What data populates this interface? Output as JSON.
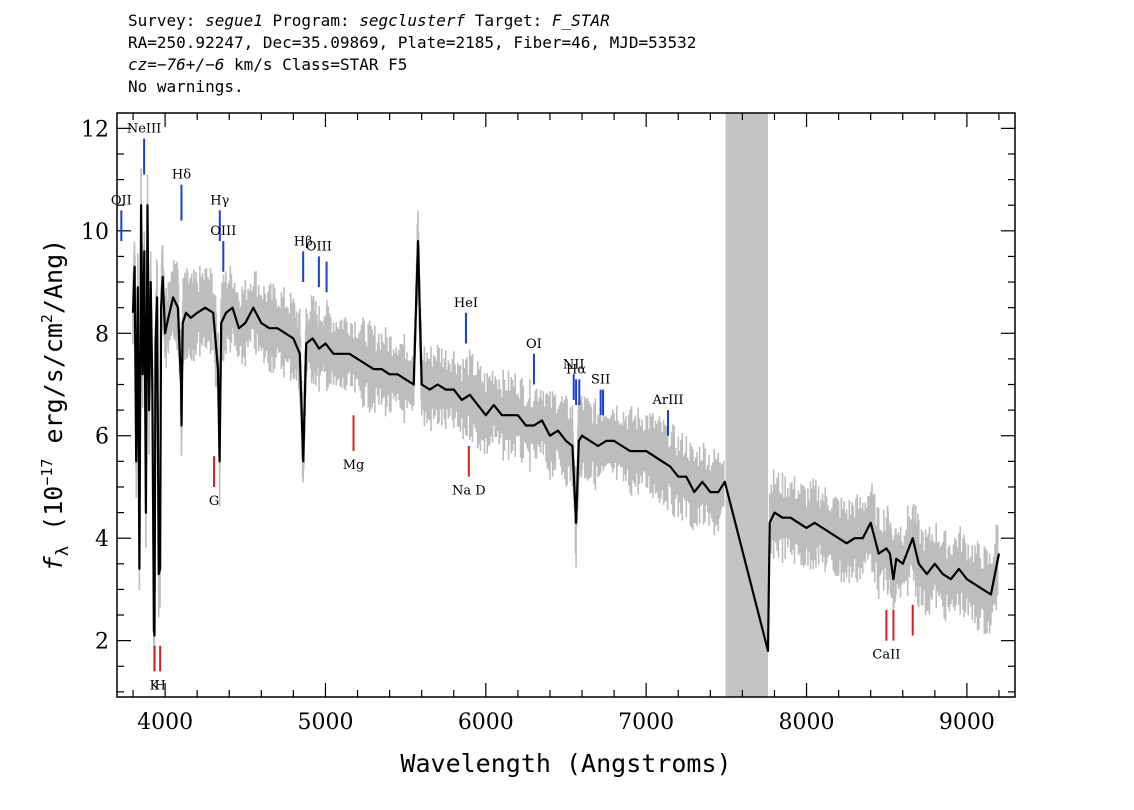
{
  "header": {
    "survey_label": "Survey:",
    "survey": "segue1",
    "program_label": "Program:",
    "program": "segclusterf",
    "target_label": "Target:",
    "target": "F_STAR",
    "line2": "RA=250.92247, Dec=35.09869, Plate=2185, Fiber=46, MJD=53532",
    "cz_label": "cz=",
    "cz_value": "−76+/−6",
    "cz_rest": " km/s Class=STAR F5",
    "line4": "No warnings."
  },
  "chart_data": {
    "type": "line",
    "xlabel": "Wavelength (Angstroms)",
    "ylabel_main": "f",
    "ylabel_sub": "λ",
    "ylabel_pre": " (10",
    "ylabel_exp": "−17",
    "ylabel_mid": " erg/s/cm",
    "ylabel_exp2": "2",
    "ylabel_post": "/Ang)",
    "xlim": [
      3700,
      9300
    ],
    "ylim": [
      0.9,
      12.3
    ],
    "xticks": [
      "4000",
      "5000",
      "6000",
      "7000",
      "8000",
      "9000"
    ],
    "yticks": [
      "2",
      "4",
      "6",
      "8",
      "10",
      "12"
    ],
    "masked_region": [
      7495,
      7760
    ],
    "emission_lines": [
      {
        "label": "OII",
        "x": 3727,
        "y0": 9.8,
        "y1": 10.4
      },
      {
        "label": "NeIII",
        "x": 3869,
        "y0": 11.1,
        "y1": 11.8
      },
      {
        "label": "Hδ",
        "x": 4102,
        "y0": 10.2,
        "y1": 10.9
      },
      {
        "label": "Hγ",
        "x": 4341,
        "y0": 9.8,
        "y1": 10.4
      },
      {
        "label": "OIII",
        "x": 4363,
        "y0": 9.2,
        "y1": 9.8
      },
      {
        "label": "Hβ",
        "x": 4861,
        "y0": 9.0,
        "y1": 9.6
      },
      {
        "label": "OIII",
        "x": 4959,
        "y0": 8.9,
        "y1": 9.5
      },
      {
        "label": "",
        "x": 5007,
        "y0": 8.8,
        "y1": 9.4
      },
      {
        "label": "HeI",
        "x": 5876,
        "y0": 7.8,
        "y1": 8.4
      },
      {
        "label": "OI",
        "x": 6300,
        "y0": 7.0,
        "y1": 7.6
      },
      {
        "label": "NII",
        "x": 6548,
        "y0": 6.7,
        "y1": 7.2
      },
      {
        "label": "Hα",
        "x": 6563,
        "y0": 6.6,
        "y1": 7.1
      },
      {
        "label": "",
        "x": 6583,
        "y0": 6.6,
        "y1": 7.1
      },
      {
        "label": "SII",
        "x": 6716,
        "y0": 6.4,
        "y1": 6.9
      },
      {
        "label": "",
        "x": 6731,
        "y0": 6.4,
        "y1": 6.9
      },
      {
        "label": "ArIII",
        "x": 7136,
        "y0": 6.0,
        "y1": 6.5
      }
    ],
    "absorption_lines": [
      {
        "label": "K",
        "x": 3934,
        "y0": 1.4,
        "y1": 1.9
      },
      {
        "label": "H",
        "x": 3969,
        "y0": 1.4,
        "y1": 1.9
      },
      {
        "label": "G",
        "x": 4305,
        "y0": 5.0,
        "y1": 5.6
      },
      {
        "label": "Mg",
        "x": 5175,
        "y0": 5.7,
        "y1": 6.4
      },
      {
        "label": "Na D",
        "x": 5894,
        "y0": 5.2,
        "y1": 5.8
      },
      {
        "label": "CaII",
        "x": 8498,
        "y0": 2.0,
        "y1": 2.6
      },
      {
        "label": "",
        "x": 8542,
        "y0": 2.0,
        "y1": 2.6
      },
      {
        "label": "",
        "x": 8662,
        "y0": 2.1,
        "y1": 2.7
      }
    ],
    "spectrum": {
      "x": [
        3800,
        3810,
        3820,
        3830,
        3840,
        3850,
        3860,
        3870,
        3880,
        3890,
        3900,
        3910,
        3920,
        3930,
        3934,
        3940,
        3950,
        3960,
        3969,
        3975,
        3985,
        4000,
        4020,
        4050,
        4080,
        4100,
        4102,
        4110,
        4130,
        4160,
        4200,
        4250,
        4300,
        4330,
        4340,
        4350,
        4380,
        4420,
        4460,
        4500,
        4550,
        4600,
        4650,
        4700,
        4750,
        4800,
        4840,
        4861,
        4880,
        4920,
        4960,
        5000,
        5050,
        5100,
        5150,
        5200,
        5250,
        5300,
        5350,
        5400,
        5450,
        5500,
        5550,
        5577,
        5600,
        5650,
        5700,
        5750,
        5800,
        5850,
        5900,
        5950,
        6000,
        6050,
        6100,
        6150,
        6200,
        6250,
        6300,
        6350,
        6400,
        6450,
        6500,
        6540,
        6563,
        6580,
        6600,
        6650,
        6700,
        6750,
        6800,
        6850,
        6900,
        6950,
        7000,
        7050,
        7100,
        7150,
        7200,
        7250,
        7300,
        7350,
        7400,
        7450,
        7490,
        7760,
        7770,
        7800,
        7850,
        7900,
        7950,
        8000,
        8050,
        8100,
        8150,
        8200,
        8250,
        8300,
        8350,
        8400,
        8450,
        8498,
        8520,
        8542,
        8560,
        8600,
        8662,
        8700,
        8750,
        8800,
        8850,
        8900,
        8950,
        9000,
        9050,
        9100,
        9150,
        9200
      ],
      "y": [
        8.4,
        9.3,
        5.5,
        8.9,
        3.4,
        10.5,
        7.2,
        9.6,
        4.5,
        10.5,
        6.5,
        9.0,
        7.0,
        2.2,
        2.1,
        7.8,
        8.7,
        3.3,
        3.4,
        8.5,
        9.1,
        8.0,
        8.3,
        8.7,
        8.5,
        7.0,
        6.2,
        8.2,
        8.4,
        8.3,
        8.4,
        8.5,
        8.4,
        7.3,
        5.5,
        8.2,
        8.4,
        8.5,
        8.1,
        8.2,
        8.5,
        8.2,
        8.1,
        8.1,
        8.0,
        7.9,
        7.6,
        5.5,
        7.8,
        7.9,
        7.7,
        7.8,
        7.6,
        7.6,
        7.6,
        7.5,
        7.4,
        7.3,
        7.3,
        7.2,
        7.2,
        7.1,
        7.0,
        9.8,
        7.0,
        6.9,
        7.0,
        6.9,
        6.9,
        6.7,
        6.8,
        6.6,
        6.4,
        6.6,
        6.4,
        6.4,
        6.4,
        6.2,
        6.2,
        6.3,
        6.0,
        6.1,
        5.9,
        5.8,
        4.3,
        5.9,
        6.0,
        5.9,
        5.8,
        5.9,
        5.9,
        5.8,
        5.7,
        5.7,
        5.7,
        5.6,
        5.5,
        5.4,
        5.2,
        5.2,
        4.9,
        5.1,
        4.9,
        4.9,
        5.1,
        1.8,
        4.3,
        4.5,
        4.4,
        4.4,
        4.3,
        4.2,
        4.3,
        4.2,
        4.1,
        4.0,
        3.9,
        4.0,
        4.0,
        4.3,
        3.7,
        3.8,
        3.7,
        3.2,
        3.6,
        3.5,
        4.0,
        3.5,
        3.3,
        3.5,
        3.3,
        3.2,
        3.4,
        3.2,
        3.1,
        3.0,
        2.9,
        3.7
      ]
    }
  }
}
